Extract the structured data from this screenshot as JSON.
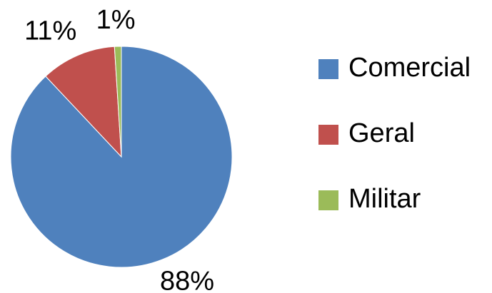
{
  "chart_data": {
    "type": "pie",
    "categories": [
      "Comercial",
      "Geral",
      "Militar"
    ],
    "values": [
      88,
      11,
      1
    ],
    "value_labels": [
      "88%",
      "11%",
      "1%"
    ],
    "colors": [
      "#4f81bd",
      "#c0504d",
      "#9bbb59"
    ],
    "legend": "right"
  }
}
